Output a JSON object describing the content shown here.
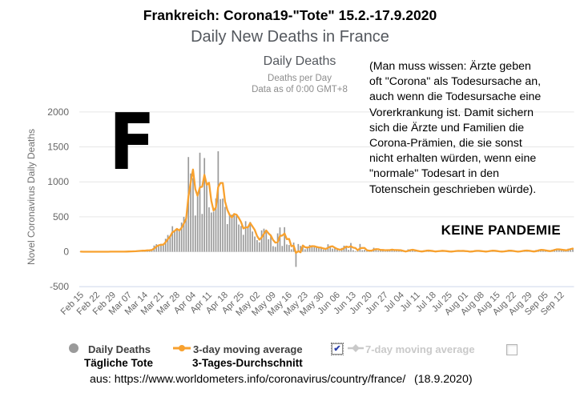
{
  "header": {
    "title": "Frankreich: Corona19-\"Tote\" 15.2.-17.9.2020",
    "subtitle": "Daily New Deaths in France",
    "chart_title": "Daily Deaths",
    "chart_subtitle_line1": "Deaths per Day",
    "chart_subtitle_line2": "Data as of 0:00 GMT+8"
  },
  "annotations": {
    "comment": "(Man muss wissen: Ärzte geben\noft \"Corona\" als Todesursache an,\nauch wenn die Todesursache eine\nVorerkrankung ist. Damit sichern\nsich die Ärzte und Familien die\nCorona-Prämien, die sie sonst\nnicht erhalten würden, wenn eine\n\"normale\" Todesart in den\nTotenschein geschrieben würde).",
    "big_letter": "F",
    "no_pandemic": "KEINE PANDEMIE"
  },
  "legend": {
    "daily_deaths_label": "Daily Deaths",
    "daily_deaths_label_de": "Tägliche Tote",
    "ma3_label": "3-day moving average",
    "ma3_label_de": "3-Tages-Durchschnitt",
    "ma7_label": "7-day moving average",
    "ma7_checkbox_checked": true,
    "right_checkbox_checked": false
  },
  "icons": {
    "check": "✔"
  },
  "footer": {
    "source": "aus: https://www.worldometers.info/coronavirus/country/france/",
    "date": "(18.9.2020)"
  },
  "colors": {
    "bar": "#9a9a9a",
    "line": "#f8a12e",
    "grid": "#e6e6e6",
    "axis_bottom": "#ccd6eb",
    "tick_text": "#666666",
    "muted_legend": "#c9c9c9"
  },
  "chart_data": {
    "type": "bar",
    "title": "Daily Deaths",
    "xlabel": "",
    "ylabel": "Novel Coronavirus Daily Deaths",
    "start_date": "Feb 15 2020",
    "end_date": "Sep 17 2020",
    "ylim": [
      -500,
      2000
    ],
    "y_ticks": [
      -500,
      0,
      500,
      1000,
      1500,
      2000
    ],
    "grid": true,
    "legend_position": "bottom",
    "x_tick_every_days": 7,
    "x_tick_labels": [
      "Feb 15",
      "Feb 22",
      "Feb 29",
      "Mar 07",
      "Mar 14",
      "Mar 21",
      "Mar 28",
      "Apr 04",
      "Apr 11",
      "Apr 18",
      "Apr 25",
      "May 02",
      "May 09",
      "May 16",
      "May 23",
      "May 30",
      "Jun 06",
      "Jun 13",
      "Jun 20",
      "Jun 27",
      "Jul 04",
      "Jul 11",
      "Jul 18",
      "Jul 25",
      "Aug 01",
      "Aug 08",
      "Aug 15",
      "Aug 22",
      "Aug 29",
      "Sep 05",
      "Sep 12"
    ],
    "series": [
      {
        "name": "Daily Deaths",
        "type": "bar",
        "values": [
          1,
          0,
          0,
          0,
          0,
          0,
          0,
          0,
          0,
          0,
          0,
          1,
          0,
          1,
          1,
          1,
          0,
          1,
          3,
          1,
          2,
          8,
          3,
          6,
          11,
          15,
          13,
          18,
          12,
          29,
          21,
          27,
          89,
          108,
          78,
          112,
          112,
          186,
          240,
          231,
          365,
          299,
          319,
          292,
          418,
          499,
          509,
          1355,
          1120,
          1053,
          518,
          833,
          1417,
          541,
          1341,
          987,
          635,
          561,
          574,
          762,
          1438,
          753,
          761,
          642,
          395,
          547,
          531,
          544,
          516,
          389,
          369,
          242,
          437,
          367,
          427,
          289,
          218,
          166,
          135,
          306,
          330,
          278,
          178,
          243,
          80,
          70,
          263,
          348,
          83,
          351,
          104,
          96,
          35,
          131,
          -217,
          110,
          83,
          74,
          35,
          70,
          98,
          73,
          66,
          66,
          52,
          57,
          31,
          31,
          107,
          81,
          44,
          46,
          31,
          13,
          54,
          87,
          81,
          27,
          125,
          24,
          9,
          29,
          111,
          23,
          28,
          14,
          7,
          23,
          57,
          30,
          18,
          26,
          30,
          8,
          30,
          31,
          27,
          14,
          30,
          25,
          8,
          0,
          3,
          34,
          32,
          21,
          14,
          7,
          0,
          4,
          21,
          18,
          14,
          9,
          3,
          0,
          16,
          14,
          12,
          8,
          3,
          0,
          3,
          13,
          14,
          12,
          10,
          16,
          3,
          0,
          0,
          12,
          14,
          11,
          12,
          6,
          0,
          0,
          16,
          17,
          14,
          9,
          6,
          0,
          0,
          15,
          14,
          18,
          12,
          5,
          0,
          0,
          14,
          17,
          18,
          15,
          9,
          0,
          0,
          25,
          29,
          26,
          20,
          12,
          8,
          6,
          30,
          39,
          33,
          30,
          27,
          20,
          15,
          44,
          50,
          43
        ]
      },
      {
        "name": "3-day moving average",
        "type": "line",
        "derived": "3-day trailing moving average of Daily Deaths"
      }
    ]
  }
}
